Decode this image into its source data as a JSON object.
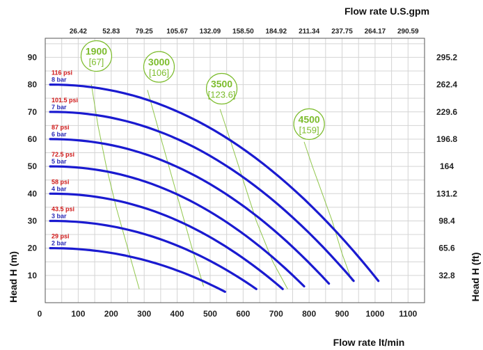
{
  "chart_data": {
    "type": "line",
    "title": "",
    "xlabel": "Flow rate lt/min",
    "x2label": "Flow rate U.S.gpm",
    "ylabel": "Head H (m)",
    "y2label": "Head H (ft)",
    "xlim": [
      0,
      1150
    ],
    "ylim": [
      0,
      97
    ],
    "x_ticks": [
      0,
      100,
      200,
      300,
      400,
      500,
      600,
      700,
      800,
      900,
      1000,
      1100
    ],
    "y_ticks": [
      10,
      20,
      30,
      40,
      50,
      60,
      70,
      80,
      90
    ],
    "x2_ticks": [
      {
        "x": 100,
        "label": "26.42"
      },
      {
        "x": 200,
        "label": "52.83"
      },
      {
        "x": 300,
        "label": "79.25"
      },
      {
        "x": 400,
        "label": "105.67"
      },
      {
        "x": 500,
        "label": "132.09"
      },
      {
        "x": 600,
        "label": "158.50"
      },
      {
        "x": 700,
        "label": "184.92"
      },
      {
        "x": 800,
        "label": "211.34"
      },
      {
        "x": 900,
        "label": "237.75"
      },
      {
        "x": 1000,
        "label": "264.17"
      },
      {
        "x": 1100,
        "label": "290.59"
      }
    ],
    "y2_ticks": [
      {
        "y": 90,
        "label": "295.2"
      },
      {
        "y": 80,
        "label": "262.4"
      },
      {
        "y": 70,
        "label": "229.6"
      },
      {
        "y": 60,
        "label": "196.8"
      },
      {
        "y": 50,
        "label": "164"
      },
      {
        "y": 40,
        "label": "131.2"
      },
      {
        "y": 30,
        "label": "98.4"
      },
      {
        "y": 20,
        "label": "65.6"
      },
      {
        "y": 10,
        "label": "32.8"
      }
    ],
    "grid": true,
    "series": [
      {
        "name": "8 bar",
        "psi": "116 psi",
        "bar": "8 bar",
        "head0": 80,
        "x_end": 1010,
        "y_end": 8
      },
      {
        "name": "7 bar",
        "psi": "101.5 psi",
        "bar": "7 bar",
        "head0": 70,
        "x_end": 935,
        "y_end": 8
      },
      {
        "name": "6 bar",
        "psi": "87 psi",
        "bar": "6 bar",
        "head0": 60,
        "x_end": 860,
        "y_end": 7
      },
      {
        "name": "5 bar",
        "psi": "72.5 psi",
        "bar": "5 bar",
        "head0": 50,
        "x_end": 785,
        "y_end": 6
      },
      {
        "name": "4 bar",
        "psi": "58 psi",
        "bar": "4 bar",
        "head0": 40,
        "x_end": 720,
        "y_end": 5
      },
      {
        "name": "3 bar",
        "psi": "43.5 psi",
        "bar": "3 bar",
        "head0": 30,
        "x_end": 640,
        "y_end": 5
      },
      {
        "name": "2 bar",
        "psi": "29 psi",
        "bar": "2 bar",
        "head0": 20,
        "x_end": 545,
        "y_end": 4
      }
    ],
    "psi_color": "#d01818",
    "bar_color": "#2a2ab8",
    "curve_color": "#1a1ad0",
    "speed_color": "#7cbc2c",
    "speed_lines": [
      {
        "label": "1900",
        "sub": "[67]",
        "x": 155,
        "y": 90.5,
        "points": [
          [
            140,
            80
          ],
          [
            160,
            65
          ],
          [
            185,
            50
          ],
          [
            215,
            35
          ],
          [
            250,
            20
          ],
          [
            285,
            5
          ]
        ]
      },
      {
        "label": "3000",
        "sub": "[106]",
        "x": 345,
        "y": 86.5,
        "points": [
          [
            310,
            78
          ],
          [
            340,
            65
          ],
          [
            375,
            50
          ],
          [
            410,
            35
          ],
          [
            445,
            20
          ],
          [
            480,
            6
          ]
        ]
      },
      {
        "label": "3500",
        "sub": "[123.6]",
        "x": 535,
        "y": 78.5,
        "points": [
          [
            530,
            71
          ],
          [
            560,
            60
          ],
          [
            600,
            45
          ],
          [
            640,
            30
          ],
          [
            690,
            15
          ],
          [
            735,
            5
          ]
        ]
      },
      {
        "label": "4500",
        "sub": "[159]",
        "x": 800,
        "y": 65.5,
        "points": [
          [
            785,
            59
          ],
          [
            810,
            50
          ],
          [
            840,
            40
          ],
          [
            870,
            30
          ],
          [
            900,
            18
          ],
          [
            930,
            8
          ]
        ]
      }
    ]
  }
}
